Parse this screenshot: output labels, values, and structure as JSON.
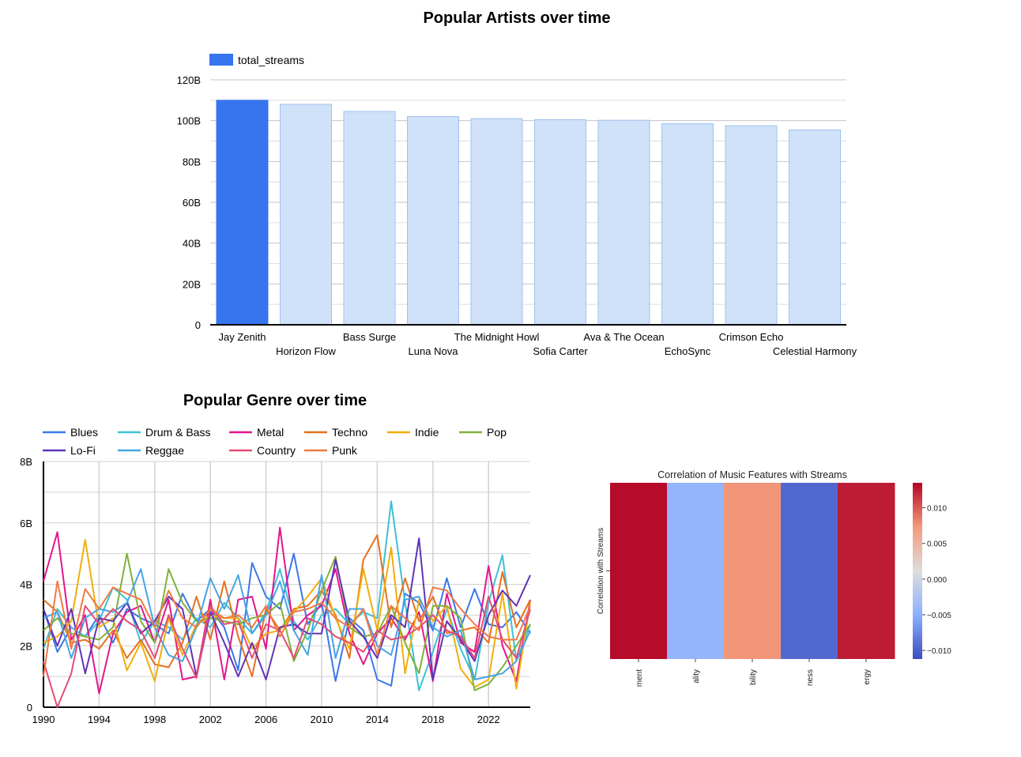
{
  "chart_data": [
    {
      "type": "bar",
      "title": "Popular Artists over time",
      "legend": [
        "total_streams"
      ],
      "legend_position": "top-left",
      "categories": [
        "Jay Zenith",
        "Horizon Flow",
        "Bass Surge",
        "Luna Nova",
        "The Midnight Howl",
        "Sofia Carter",
        "Ava & The Ocean",
        "EchoSync",
        "Crimson Echo",
        "Celestial Harmony"
      ],
      "values": [
        110,
        108,
        104.5,
        102,
        101,
        100.5,
        100.2,
        98.5,
        97.5,
        95.5
      ],
      "highlighted": "Jay Zenith",
      "ylim": [
        0,
        120
      ],
      "yticks": [
        "0",
        "20B",
        "40B",
        "60B",
        "80B",
        "100B",
        "120B"
      ],
      "grid": true,
      "colors": {
        "highlight": "#3774ef",
        "bar": "#d0e1fa",
        "bar_edge": "#9fc2ee"
      }
    },
    {
      "type": "line",
      "title": "Popular Genre over time",
      "legend_position": "top",
      "x": [
        1990,
        1991,
        1992,
        1993,
        1994,
        1995,
        1996,
        1997,
        1998,
        1999,
        2000,
        2001,
        2002,
        2003,
        2004,
        2005,
        2006,
        2007,
        2008,
        2009,
        2010,
        2011,
        2012,
        2013,
        2014,
        2015,
        2016,
        2017,
        2018,
        2019,
        2020,
        2021,
        2022,
        2023,
        2024,
        2025
      ],
      "xticks": [
        "1990",
        "1994",
        "1998",
        "2002",
        "2006",
        "2010",
        "2014",
        "2018",
        "2022"
      ],
      "ylim": [
        0,
        8
      ],
      "yticks": [
        "0",
        "2B",
        "4B",
        "6B",
        "8B"
      ],
      "grid": true,
      "series": [
        {
          "name": "Blues",
          "color": "#3b78e7",
          "values": [
            3.2,
            1.8,
            2.6,
            2.3,
            3,
            2.1,
            3.2,
            2.9,
            2.7,
            2.4,
            3.7,
            2.8,
            3.2,
            2.6,
            1.2,
            4.7,
            3.6,
            3.2,
            5,
            2.7,
            3.4,
            0.85,
            2.9,
            2.5,
            0.9,
            0.7,
            3.7,
            3.4,
            2.5,
            4.2,
            2.6,
            3.85,
            2.7,
            2.6,
            3.1,
            2.4
          ]
        },
        {
          "name": "Drum & Bass",
          "color": "#3ec0d6",
          "values": [
            1.9,
            3.2,
            2.6,
            2.3,
            2.8,
            3.9,
            3.5,
            2.1,
            2.8,
            2.6,
            2.2,
            2.9,
            2.6,
            3.4,
            2.9,
            2.4,
            3.1,
            4.5,
            2.8,
            2.2,
            3,
            3.2,
            2.7,
            3.1,
            2.9,
            6.7,
            3.4,
            0.55,
            1.8,
            3.2,
            1.9,
            0.9,
            3.4,
            4.95,
            1.5,
            2.7
          ]
        },
        {
          "name": "Metal",
          "color": "#e3168c",
          "values": [
            4.1,
            5.7,
            2.2,
            3,
            0.45,
            2.4,
            3.1,
            3.3,
            2.1,
            3.5,
            0.9,
            1,
            3.5,
            0.9,
            3.5,
            3.6,
            1.9,
            5.85,
            2.5,
            3,
            3.3,
            4.5,
            2.4,
            1.4,
            2.4,
            2.9,
            2.2,
            3.1,
            0.85,
            3.7,
            2.1,
            1.8,
            4.6,
            2,
            0.85,
            3.5
          ]
        },
        {
          "name": "Techno",
          "color": "#e6711f",
          "values": [
            3.5,
            3.1,
            2.1,
            2.2,
            1.9,
            2.5,
            1.6,
            2.2,
            1.4,
            1.3,
            2.1,
            3.6,
            2.2,
            4.1,
            2.3,
            1,
            3.2,
            2.5,
            3.2,
            3.3,
            3.8,
            3,
            1.6,
            4.8,
            5.6,
            2.6,
            4.2,
            2.8,
            3.6,
            2.4,
            2.5,
            2.6,
            2.1,
            4.4,
            2.6,
            3.5
          ]
        },
        {
          "name": "Indie",
          "color": "#f1ae0c",
          "values": [
            2.1,
            2.3,
            2.8,
            5.45,
            2.6,
            2.9,
            1.2,
            2.1,
            0.85,
            2.9,
            1.7,
            2.7,
            3,
            2.9,
            2.9,
            1.9,
            2.4,
            2.5,
            3.1,
            3.6,
            4.2,
            2.9,
            1.9,
            4.5,
            2.5,
            5.2,
            1.1,
            3.5,
            2.8,
            3.3,
            1.25,
            0.65,
            0.9,
            3.7,
            0.6,
            3.4
          ]
        },
        {
          "name": "Pop",
          "color": "#7fb23a",
          "values": [
            2.5,
            2.9,
            2.4,
            2.3,
            2.2,
            2.6,
            5,
            2.8,
            2.1,
            4.5,
            3.4,
            2.8,
            2.9,
            2.8,
            2.7,
            2.9,
            3,
            3.4,
            1.5,
            2.5,
            3.8,
            4.9,
            2.6,
            2.3,
            2.4,
            3.3,
            2.1,
            1.1,
            3.3,
            3.3,
            2.9,
            0.55,
            0.75,
            1.3,
            2,
            2.7
          ]
        },
        {
          "name": "Lo-Fi",
          "color": "#6033b8",
          "values": [
            3.2,
            2,
            3.2,
            1.1,
            2.9,
            2.8,
            3.4,
            2.4,
            2.8,
            3.6,
            3.2,
            1,
            3.1,
            2.1,
            1,
            2.1,
            0.9,
            2.6,
            2.7,
            2.4,
            2.4,
            4.8,
            2.8,
            2.3,
            1.6,
            3,
            2.6,
            5.5,
            0.9,
            2.8,
            2.2,
            1.5,
            3,
            3.8,
            3.3,
            4.3
          ]
        },
        {
          "name": "Reggae",
          "color": "#46a4e6",
          "values": [
            2.9,
            3.1,
            1.6,
            2.9,
            3.2,
            3.1,
            3.4,
            4.5,
            2.6,
            1.7,
            1.5,
            2.6,
            4.2,
            3.2,
            4.3,
            2.4,
            3,
            4.1,
            2.5,
            1.7,
            4.3,
            1.6,
            3.2,
            3.2,
            2,
            1.7,
            3.5,
            3.6,
            2.6,
            2.3,
            2.5,
            0.9,
            1,
            1.1,
            1.5,
            2.5
          ]
        },
        {
          "name": "Country",
          "color": "#e34d73",
          "values": [
            1.5,
            0,
            1.1,
            3.3,
            2.7,
            3.2,
            2.8,
            2.5,
            1.6,
            3,
            1.9,
            0.95,
            3.3,
            2.7,
            2.8,
            1.6,
            2.7,
            2.5,
            1.6,
            2.9,
            2.7,
            2.3,
            2.1,
            1.8,
            2.5,
            2.2,
            2.3,
            2.6,
            3,
            2.5,
            2.3,
            1.6,
            3.6,
            2.2,
            1.6,
            3.2
          ]
        },
        {
          "name": "Punk",
          "color": "#ee7a43",
          "values": [
            1,
            4.1,
            1.9,
            3.85,
            3.2,
            3.9,
            3.7,
            3.5,
            2.6,
            3.8,
            2.9,
            2.6,
            3.2,
            2.9,
            3,
            2.6,
            3.3,
            2.3,
            3.1,
            3.2,
            3.4,
            2.9,
            2.6,
            3.2,
            1.7,
            3.3,
            2.9,
            2.5,
            3.9,
            3.8,
            3.2,
            2.7,
            2.3,
            2.2,
            2.2,
            3.3
          ]
        }
      ]
    },
    {
      "type": "heatmap",
      "title": "Correlation of Music Features with Streams",
      "ylabel": "Correlation with Streams",
      "categories": [
        "ment",
        "ality",
        "bility",
        "ness",
        "ergy"
      ],
      "values": [
        0.0132,
        -0.0045,
        0.0075,
        -0.0095,
        0.0125
      ],
      "colorbar_ticks": [
        "0.010",
        "0.005",
        "0.000",
        "−0.005",
        "−0.010"
      ],
      "colormap": "coolwarm",
      "vrange": [
        -0.0112,
        0.0135
      ]
    }
  ]
}
